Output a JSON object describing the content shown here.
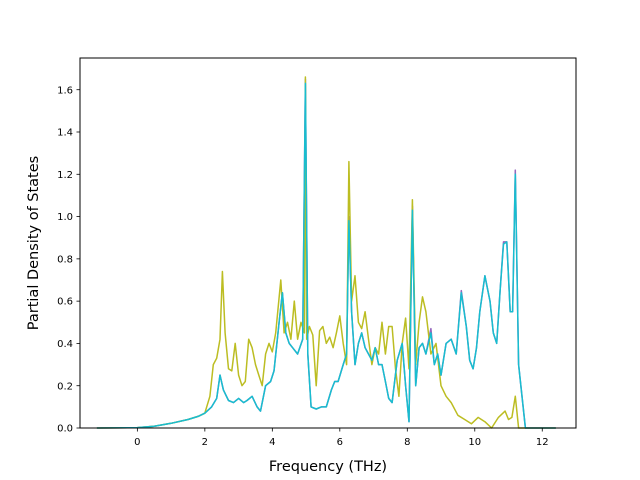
{
  "chart_data": {
    "type": "line",
    "title": "",
    "xlabel": "Frequency (THz)",
    "ylabel": "Partial Density of States",
    "xlim": [
      -1.7,
      13.0
    ],
    "ylim": [
      0.0,
      1.75
    ],
    "xticks": [
      0,
      2,
      4,
      6,
      8,
      10,
      12
    ],
    "yticks": [
      0.0,
      0.2,
      0.4,
      0.6,
      0.8,
      1.0,
      1.2,
      1.4,
      1.6
    ],
    "xtick_labels": [
      "0",
      "2",
      "4",
      "6",
      "8",
      "10",
      "12"
    ],
    "ytick_labels": [
      "0.0",
      "0.2",
      "0.4",
      "0.6",
      "0.8",
      "1.0",
      "1.2",
      "1.4",
      "1.6"
    ],
    "grid": false,
    "legend": "none",
    "series": [
      {
        "color": "#9467bd",
        "x": [
          -1.2,
          0.0,
          0.5,
          1.0,
          1.5,
          1.8,
          2.0,
          2.2,
          2.35,
          2.45,
          2.55,
          2.7,
          2.85,
          3.0,
          3.15,
          3.25,
          3.4,
          3.55,
          3.65,
          3.8,
          3.95,
          4.05,
          4.2,
          4.3,
          4.4,
          4.5,
          4.6,
          4.75,
          4.9,
          4.98,
          5.05,
          5.15,
          5.3,
          5.45,
          5.6,
          5.75,
          5.85,
          5.95,
          6.1,
          6.2,
          6.27,
          6.35,
          6.45,
          6.55,
          6.65,
          6.75,
          6.85,
          6.95,
          7.05,
          7.15,
          7.25,
          7.35,
          7.45,
          7.55,
          7.7,
          7.85,
          7.95,
          8.05,
          8.15,
          8.25,
          8.35,
          8.45,
          8.55,
          8.7,
          8.8,
          8.9,
          9.0,
          9.15,
          9.3,
          9.45,
          9.6,
          9.75,
          9.85,
          9.95,
          10.05,
          10.15,
          10.3,
          10.45,
          10.55,
          10.65,
          10.75,
          10.85,
          10.95,
          11.05,
          11.12,
          11.2,
          11.3,
          11.5,
          12.0,
          12.4
        ],
        "y": [
          0.0,
          0.002,
          0.008,
          0.022,
          0.04,
          0.055,
          0.07,
          0.1,
          0.14,
          0.25,
          0.18,
          0.13,
          0.12,
          0.14,
          0.12,
          0.13,
          0.15,
          0.1,
          0.08,
          0.2,
          0.22,
          0.27,
          0.5,
          0.64,
          0.45,
          0.4,
          0.38,
          0.35,
          0.42,
          1.65,
          0.35,
          0.1,
          0.09,
          0.1,
          0.1,
          0.18,
          0.22,
          0.22,
          0.3,
          0.35,
          1.0,
          0.55,
          0.3,
          0.4,
          0.45,
          0.38,
          0.35,
          0.32,
          0.38,
          0.3,
          0.3,
          0.22,
          0.14,
          0.12,
          0.32,
          0.4,
          0.2,
          0.03,
          1.05,
          0.2,
          0.38,
          0.4,
          0.35,
          0.47,
          0.3,
          0.35,
          0.25,
          0.4,
          0.42,
          0.35,
          0.65,
          0.48,
          0.32,
          0.28,
          0.38,
          0.55,
          0.72,
          0.6,
          0.45,
          0.4,
          0.65,
          0.88,
          0.88,
          0.55,
          0.55,
          1.22,
          0.3,
          0.0,
          0.0,
          0.0
        ]
      },
      {
        "color": "#bcbd22",
        "x": [
          -1.2,
          0.0,
          0.5,
          1.0,
          1.5,
          1.8,
          2.0,
          2.15,
          2.25,
          2.35,
          2.45,
          2.52,
          2.6,
          2.7,
          2.8,
          2.9,
          3.0,
          3.1,
          3.2,
          3.3,
          3.4,
          3.5,
          3.6,
          3.7,
          3.8,
          3.9,
          4.0,
          4.1,
          4.25,
          4.35,
          4.45,
          4.55,
          4.65,
          4.75,
          4.85,
          4.95,
          4.98,
          5.02,
          5.1,
          5.2,
          5.3,
          5.4,
          5.5,
          5.6,
          5.7,
          5.8,
          5.9,
          6.0,
          6.1,
          6.2,
          6.27,
          6.35,
          6.45,
          6.55,
          6.65,
          6.75,
          6.85,
          6.95,
          7.05,
          7.15,
          7.25,
          7.35,
          7.45,
          7.55,
          7.65,
          7.75,
          7.85,
          7.95,
          8.05,
          8.15,
          8.25,
          8.35,
          8.45,
          8.55,
          8.7,
          8.85,
          9.0,
          9.15,
          9.3,
          9.5,
          9.7,
          9.9,
          10.1,
          10.3,
          10.5,
          10.7,
          10.9,
          11.0,
          11.1,
          11.2,
          11.3,
          11.5,
          12.0,
          12.4
        ],
        "y": [
          0.0,
          0.002,
          0.008,
          0.022,
          0.04,
          0.055,
          0.07,
          0.15,
          0.3,
          0.33,
          0.42,
          0.74,
          0.45,
          0.28,
          0.27,
          0.4,
          0.25,
          0.2,
          0.22,
          0.42,
          0.38,
          0.3,
          0.25,
          0.2,
          0.35,
          0.4,
          0.36,
          0.45,
          0.7,
          0.45,
          0.5,
          0.42,
          0.6,
          0.42,
          0.5,
          0.45,
          1.66,
          0.42,
          0.48,
          0.44,
          0.2,
          0.46,
          0.48,
          0.4,
          0.43,
          0.38,
          0.45,
          0.53,
          0.4,
          0.3,
          1.26,
          0.6,
          0.72,
          0.5,
          0.47,
          0.55,
          0.42,
          0.3,
          0.38,
          0.35,
          0.5,
          0.35,
          0.48,
          0.48,
          0.28,
          0.15,
          0.4,
          0.52,
          0.28,
          1.08,
          0.3,
          0.5,
          0.62,
          0.55,
          0.35,
          0.4,
          0.2,
          0.15,
          0.12,
          0.06,
          0.04,
          0.02,
          0.05,
          0.03,
          0.0,
          0.05,
          0.08,
          0.04,
          0.05,
          0.15,
          0.0,
          0.0,
          0.0,
          0.0
        ]
      },
      {
        "color": "#17becf",
        "x": [
          -1.2,
          0.0,
          0.5,
          1.0,
          1.5,
          1.8,
          2.0,
          2.2,
          2.35,
          2.45,
          2.55,
          2.7,
          2.85,
          3.0,
          3.15,
          3.25,
          3.4,
          3.55,
          3.65,
          3.8,
          3.95,
          4.05,
          4.2,
          4.3,
          4.4,
          4.5,
          4.6,
          4.75,
          4.9,
          4.98,
          5.05,
          5.15,
          5.3,
          5.45,
          5.6,
          5.75,
          5.85,
          5.95,
          6.1,
          6.2,
          6.27,
          6.35,
          6.45,
          6.55,
          6.65,
          6.75,
          6.85,
          6.95,
          7.05,
          7.15,
          7.25,
          7.35,
          7.45,
          7.55,
          7.7,
          7.85,
          7.95,
          8.05,
          8.15,
          8.25,
          8.35,
          8.45,
          8.55,
          8.7,
          8.8,
          8.9,
          9.0,
          9.15,
          9.3,
          9.45,
          9.6,
          9.75,
          9.85,
          9.95,
          10.05,
          10.15,
          10.3,
          10.45,
          10.55,
          10.65,
          10.75,
          10.85,
          10.95,
          11.05,
          11.12,
          11.2,
          11.3,
          11.5,
          12.0,
          12.4
        ],
        "y": [
          0.0,
          0.002,
          0.008,
          0.022,
          0.04,
          0.055,
          0.07,
          0.1,
          0.14,
          0.25,
          0.18,
          0.13,
          0.12,
          0.14,
          0.12,
          0.13,
          0.15,
          0.1,
          0.08,
          0.2,
          0.22,
          0.27,
          0.5,
          0.64,
          0.45,
          0.4,
          0.38,
          0.35,
          0.42,
          1.63,
          0.35,
          0.1,
          0.09,
          0.1,
          0.1,
          0.18,
          0.22,
          0.22,
          0.3,
          0.35,
          0.98,
          0.55,
          0.3,
          0.4,
          0.45,
          0.38,
          0.35,
          0.32,
          0.38,
          0.3,
          0.3,
          0.22,
          0.14,
          0.12,
          0.32,
          0.4,
          0.2,
          0.03,
          1.03,
          0.2,
          0.38,
          0.4,
          0.35,
          0.45,
          0.3,
          0.35,
          0.25,
          0.4,
          0.42,
          0.35,
          0.64,
          0.48,
          0.32,
          0.28,
          0.38,
          0.55,
          0.72,
          0.6,
          0.45,
          0.4,
          0.65,
          0.87,
          0.88,
          0.55,
          0.55,
          1.2,
          0.3,
          0.0,
          0.0,
          0.0
        ]
      }
    ]
  }
}
